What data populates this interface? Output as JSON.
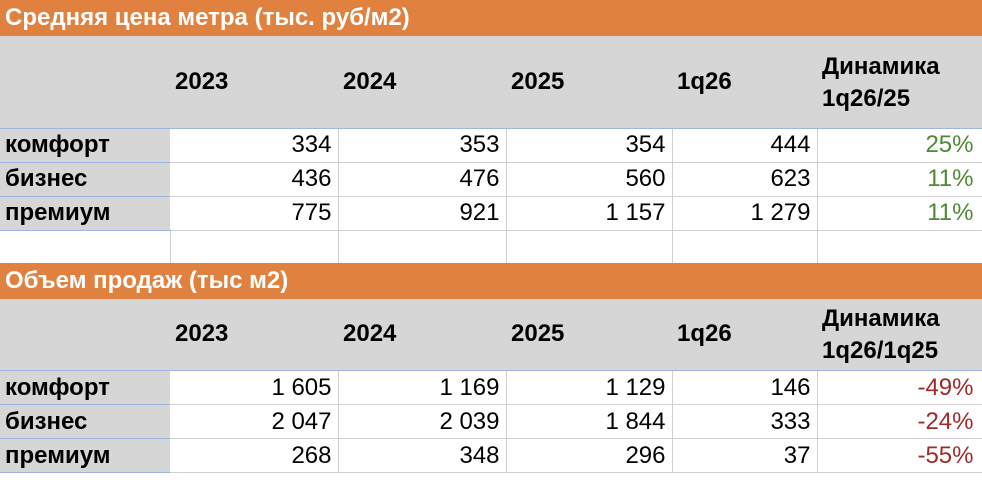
{
  "table1": {
    "title": "Средняя цена метра (тыс. руб/м2)",
    "headers": [
      "2023",
      "2024",
      "2025",
      "1q26"
    ],
    "dynamics_header": [
      "Динамика",
      "1q26/25"
    ],
    "rows": [
      {
        "label": "комфорт",
        "values": [
          "334",
          "353",
          "354",
          "444"
        ],
        "change": "25%"
      },
      {
        "label": "бизнес",
        "values": [
          "436",
          "476",
          "560",
          "623"
        ],
        "change": "11%"
      },
      {
        "label": "премиум",
        "values": [
          "775",
          "921",
          "1 157",
          "1 279"
        ],
        "change": "11%"
      }
    ],
    "change_color": "#4E8A34"
  },
  "table2": {
    "title": "Объем продаж (тыс м2)",
    "headers": [
      "2023",
      "2024",
      "2025",
      "1q26"
    ],
    "dynamics_header": [
      "Динамика",
      "1q26/1q25"
    ],
    "rows": [
      {
        "label": "комфорт",
        "values": [
          "1 605",
          "1 169",
          "1 129",
          "146"
        ],
        "change": "-49%"
      },
      {
        "label": "бизнес",
        "values": [
          "2 047",
          "2 039",
          "1 844",
          "333"
        ],
        "change": "-24%"
      },
      {
        "label": "премиум",
        "values": [
          "268",
          "348",
          "296",
          "37"
        ],
        "change": "-55%"
      }
    ],
    "change_color": "#9E2B2B"
  },
  "colors": {
    "title_bg": "#E0813F",
    "header_bg": "#D6D6D6"
  }
}
